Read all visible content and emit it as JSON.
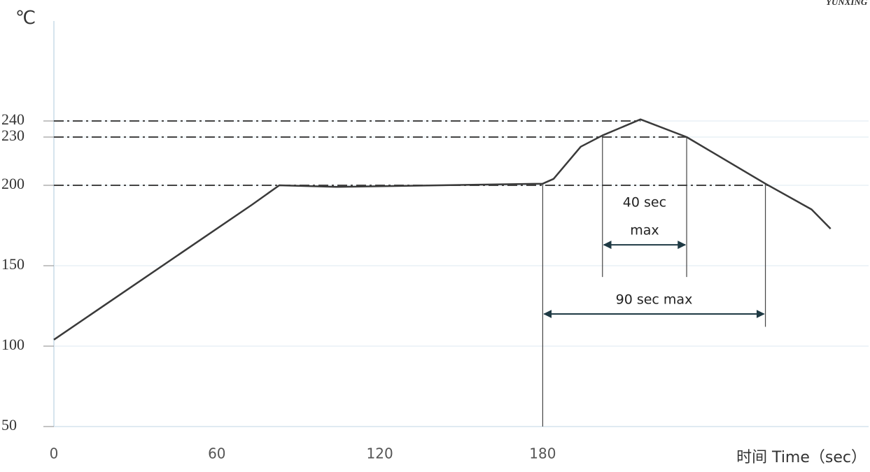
{
  "chart_data": {
    "type": "line",
    "logo": "YUNXING",
    "y_label": "℃",
    "x_label": "时间 Time（sec）",
    "x": [
      0,
      73,
      83,
      104,
      180,
      184,
      194,
      202,
      216,
      233,
      262,
      279,
      286
    ],
    "values": [
      104,
      188,
      200,
      199,
      201,
      204,
      224,
      231,
      241,
      230,
      201,
      185,
      173
    ],
    "color": "#3a3a3a",
    "xlim": [
      0,
      300
    ],
    "xticks": [
      0,
      60,
      120,
      180
    ],
    "ylim": [
      50,
      300
    ],
    "yticks": [
      50,
      100,
      150,
      200,
      230,
      240
    ],
    "grid": true,
    "reference_lines": [
      {
        "y": 240,
        "x_end": 216
      },
      {
        "y": 230,
        "x_end": 233
      },
      {
        "y": 200,
        "x_end": 264
      }
    ],
    "vertical_lines": [
      {
        "x": 180,
        "y_range": [
          50,
          201
        ]
      },
      {
        "x": 202,
        "y_range": [
          143,
          231
        ]
      },
      {
        "x": 233,
        "y_range": [
          143,
          230
        ]
      },
      {
        "x": 262,
        "y_range": [
          112,
          201
        ]
      }
    ],
    "annotations": [
      {
        "text": [
          "40 sec",
          "max"
        ],
        "x": [
          202,
          233
        ],
        "y": 163
      },
      {
        "text": [
          "90 sec max"
        ],
        "x": [
          180,
          262
        ],
        "y": 120
      }
    ]
  }
}
